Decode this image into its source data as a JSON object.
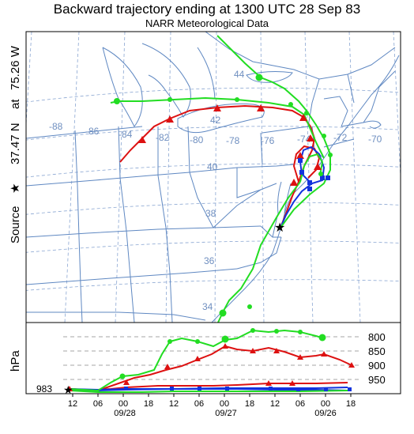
{
  "title": "Backward trajectory ending at 1300 UTC 28 Sep 83",
  "subtitle": "NARR Meteorological Data",
  "side_label": {
    "source": "Source",
    "star": "★",
    "at": "at",
    "lat": "37.47 N",
    "lon": "75.26 W"
  },
  "map": {
    "lon_labels": [
      "-88",
      "-86",
      "-84",
      "-82",
      "-80",
      "-78",
      "-76",
      "-74",
      "-72",
      "-70"
    ],
    "lat_labels": [
      "44",
      "42",
      "40",
      "38",
      "36",
      "34"
    ]
  },
  "vertical_panel": {
    "y_unit": "hPa",
    "pressure_labels": [
      "800",
      "850",
      "900",
      "950"
    ],
    "start_label": "983",
    "hour_ticks": [
      "12",
      "06",
      "00",
      "18",
      "12",
      "06",
      "00",
      "18",
      "12",
      "06",
      "00",
      "18"
    ],
    "date_labels": [
      "09/28",
      "09/27",
      "09/26"
    ]
  },
  "colors": {
    "red": "#dd1111",
    "blue": "#1133dd",
    "green": "#22dd22",
    "map_lines": "#5f88c2",
    "grid_labels": "#6f8fc0"
  }
}
